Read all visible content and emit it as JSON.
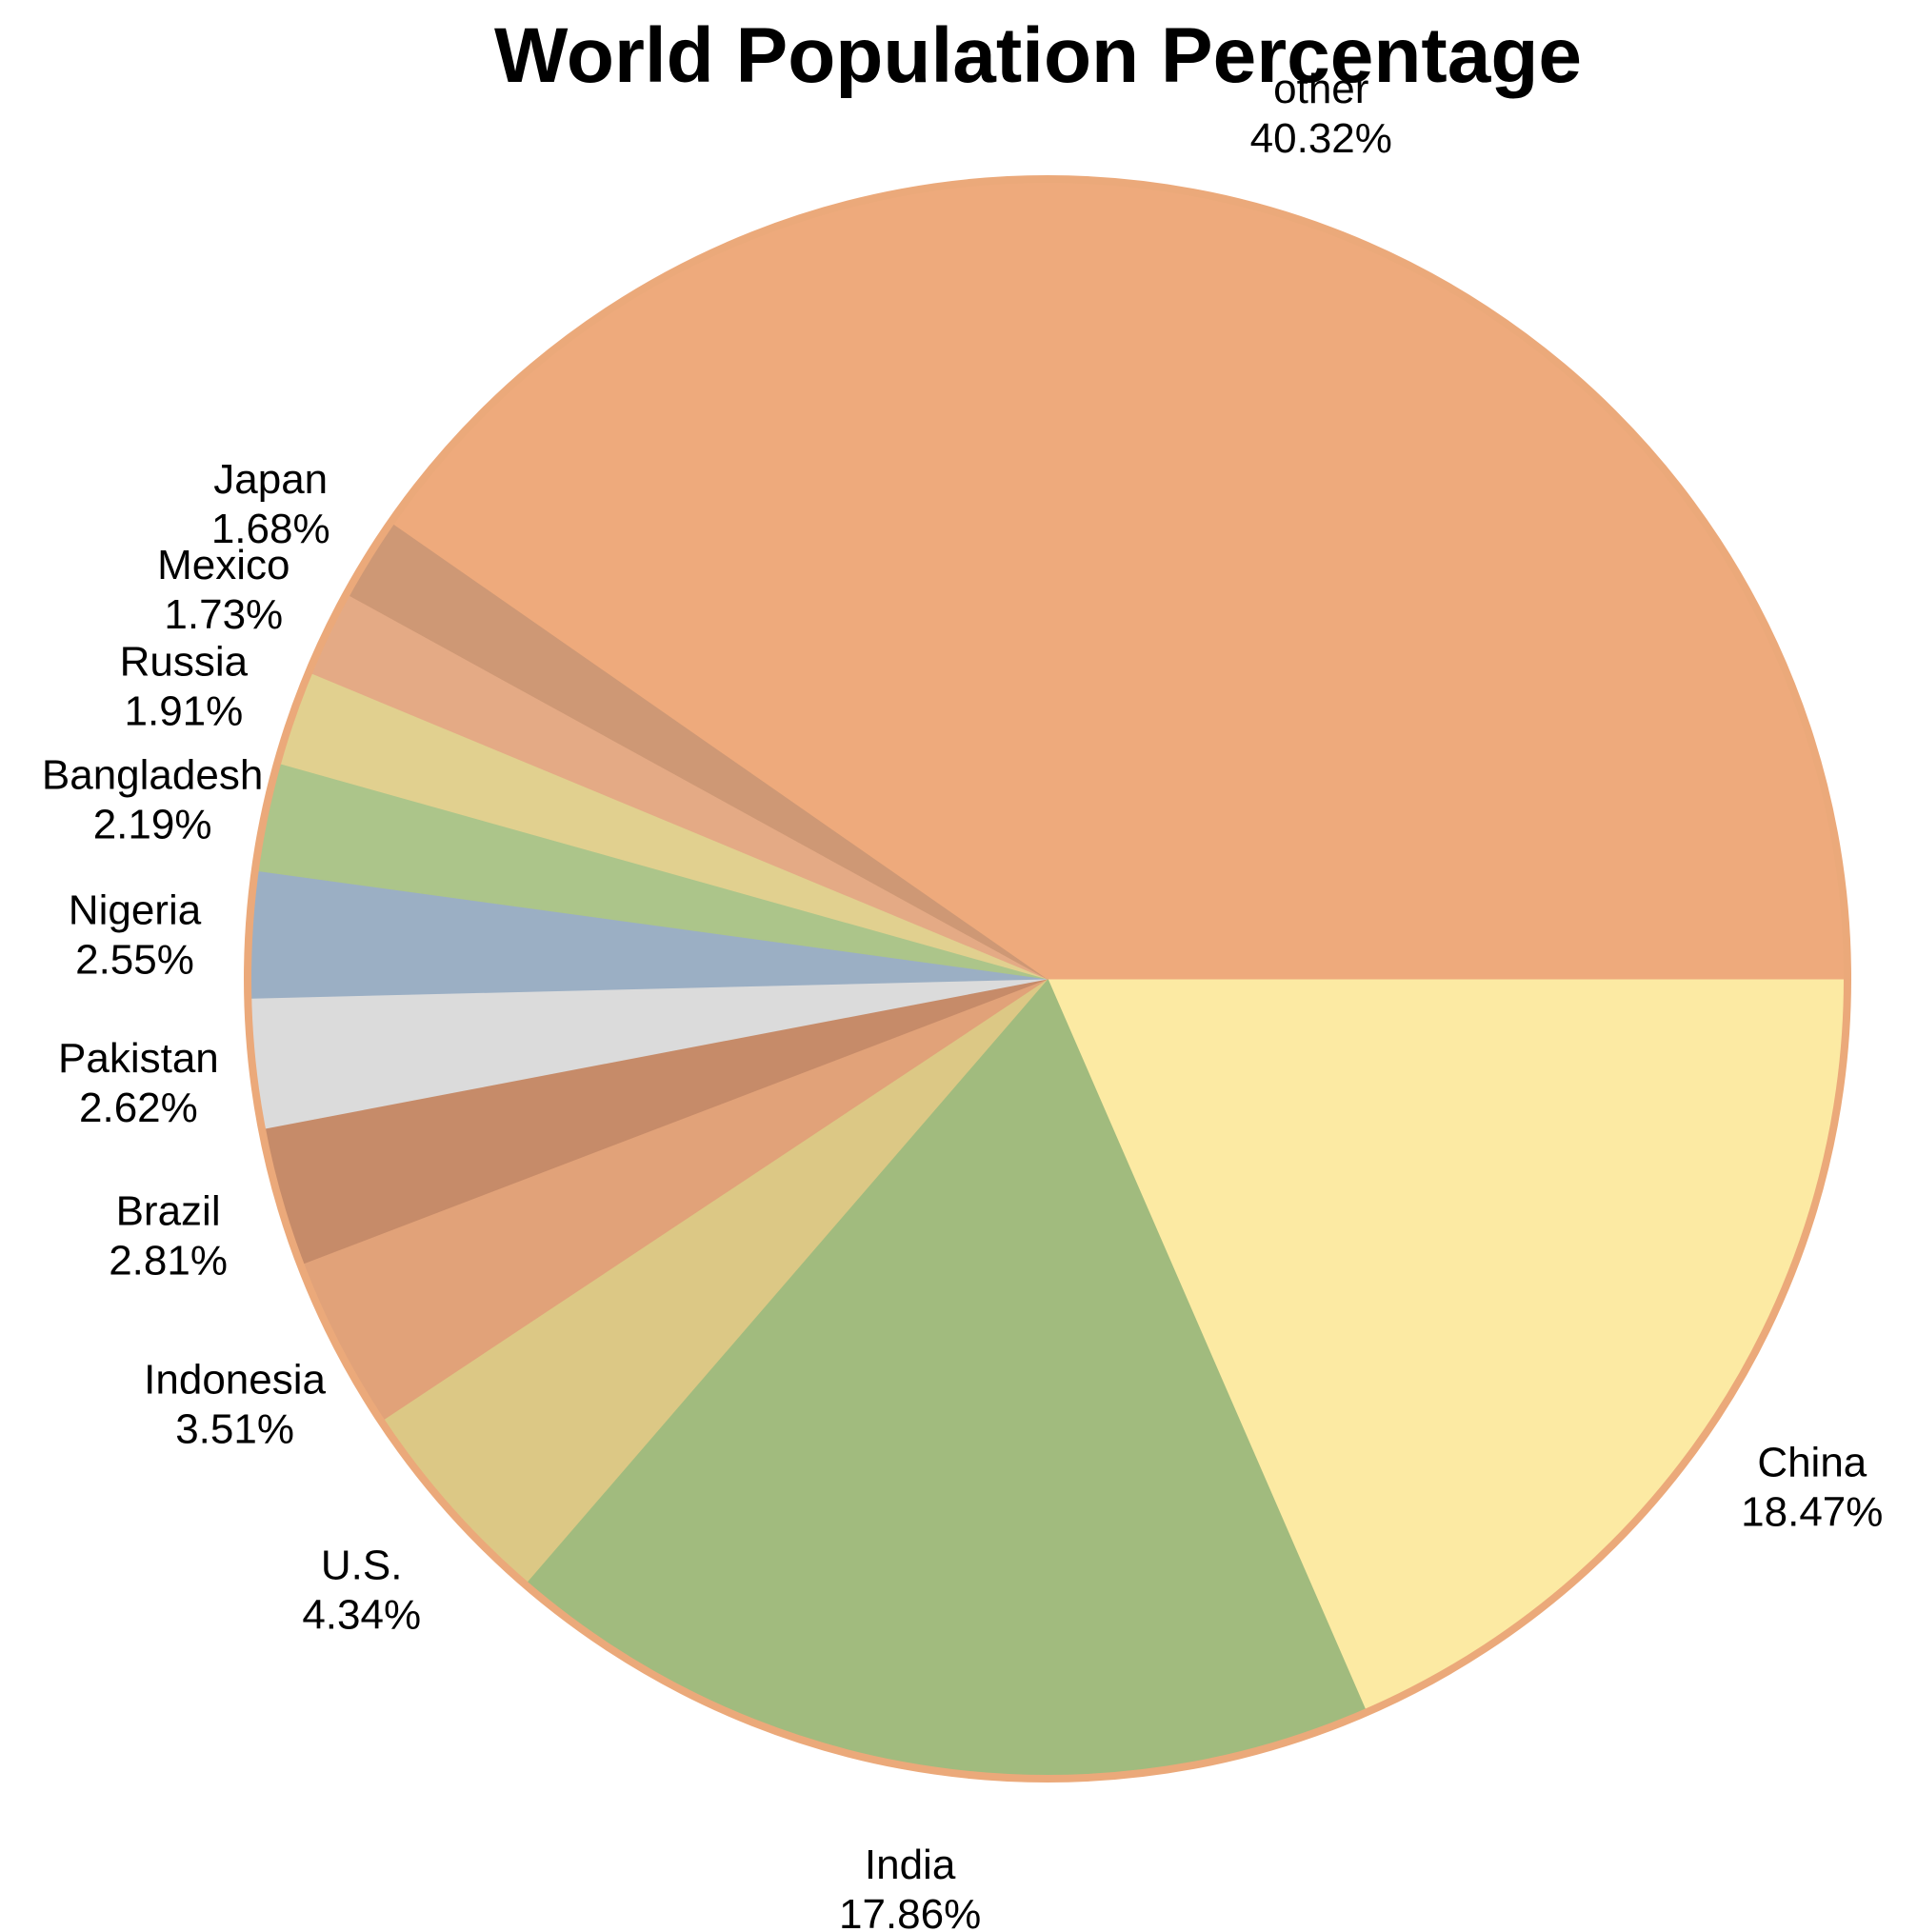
{
  "chart_data": {
    "type": "pie",
    "title": "World Population Percentage",
    "slices": [
      {
        "label": "China",
        "value": 18.47,
        "value_label": "18.47%",
        "color": "#FCEAA3"
      },
      {
        "label": "India",
        "value": 17.86,
        "value_label": "17.86%",
        "color": "#A1BB7E"
      },
      {
        "label": "U.S.",
        "value": 4.34,
        "value_label": "4.34%",
        "color": "#DCC885"
      },
      {
        "label": "Indonesia",
        "value": 3.51,
        "value_label": "3.51%",
        "color": "#E1A279"
      },
      {
        "label": "Brazil",
        "value": 2.81,
        "value_label": "2.81%",
        "color": "#C68B69"
      },
      {
        "label": "Pakistan",
        "value": 2.62,
        "value_label": "2.62%",
        "color": "#DBDBDB"
      },
      {
        "label": "Nigeria",
        "value": 2.55,
        "value_label": "2.55%",
        "color": "#9BAFC4"
      },
      {
        "label": "Bangladesh",
        "value": 2.19,
        "value_label": "2.19%",
        "color": "#ACC58A"
      },
      {
        "label": "Russia",
        "value": 1.91,
        "value_label": "1.91%",
        "color": "#E1D08F"
      },
      {
        "label": "Mexico",
        "value": 1.73,
        "value_label": "1.73%",
        "color": "#E4AA85"
      },
      {
        "label": "Japan",
        "value": 1.68,
        "value_label": "1.68%",
        "color": "#CE9875"
      },
      {
        "label": "other",
        "value": 40.32,
        "value_label": "40.32%",
        "color": "#EEAA7C"
      }
    ],
    "border_color": "#EBA97A",
    "start_direction": "east",
    "direction": "clockwise"
  }
}
